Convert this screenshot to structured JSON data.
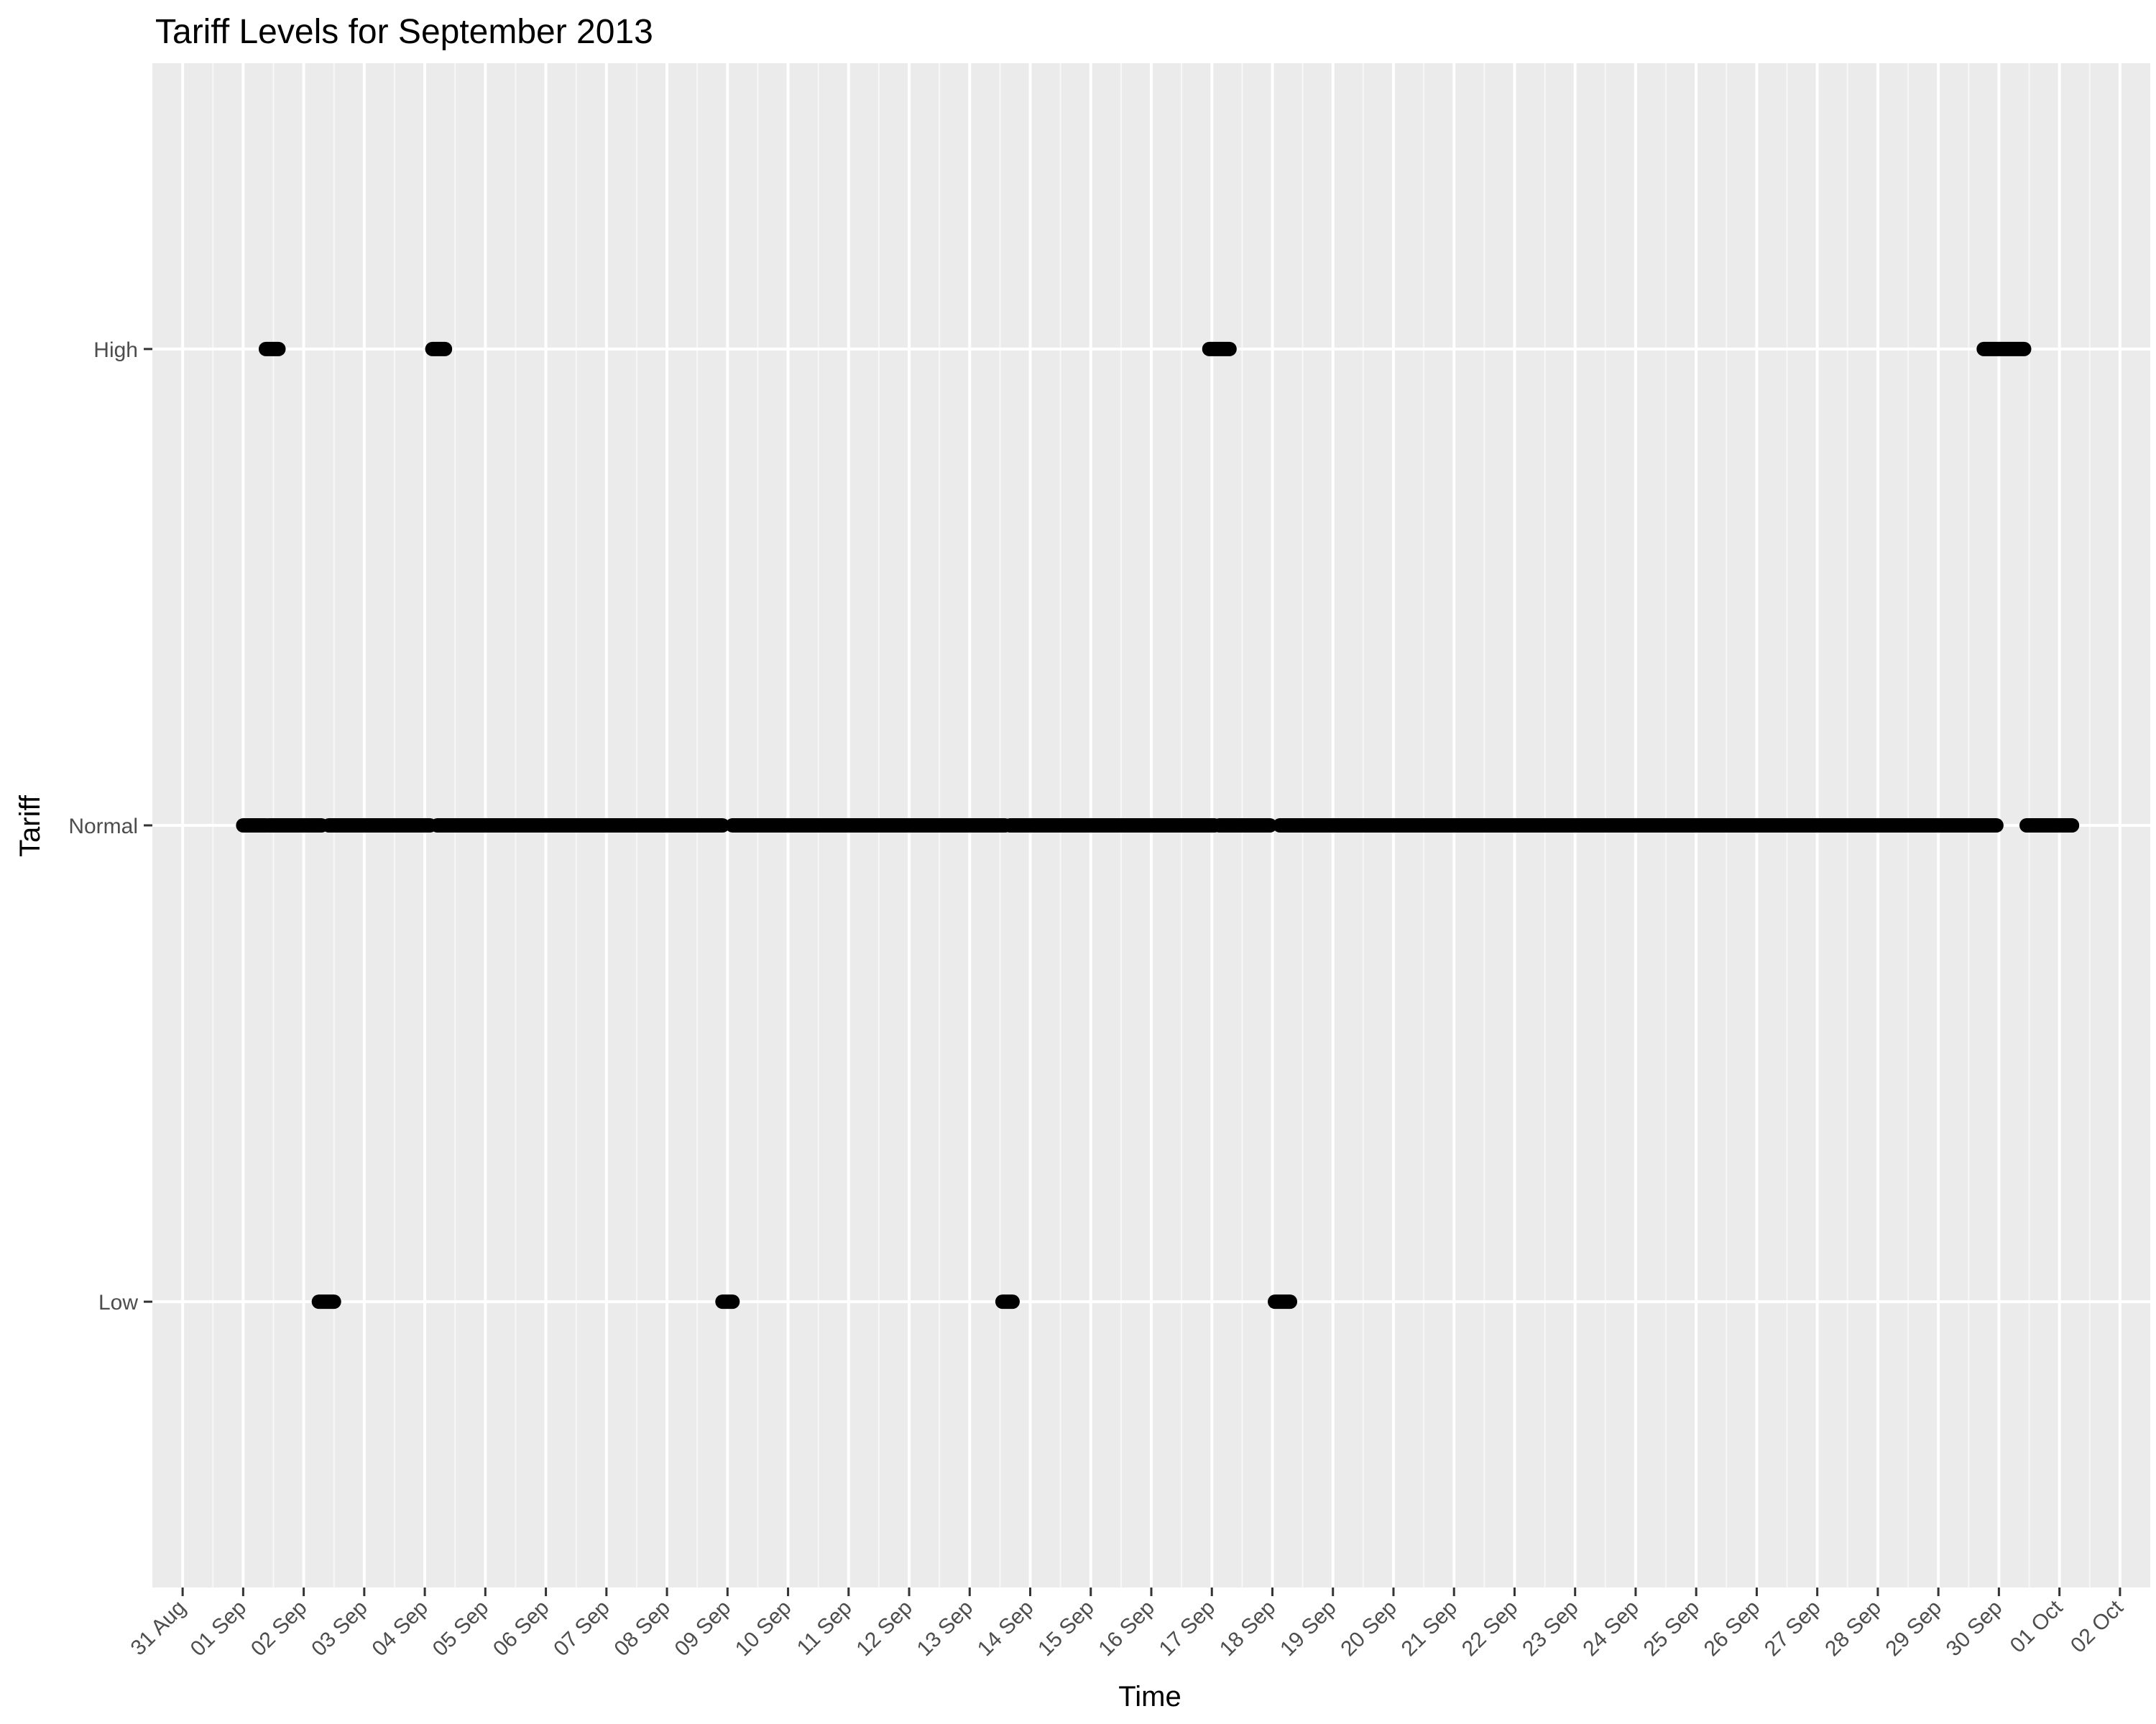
{
  "chart_data": {
    "type": "scatter",
    "title": "Tariff Levels for September 2013",
    "xlabel": "Time",
    "ylabel": "Tariff",
    "x_axis": {
      "type": "date",
      "tick_labels": [
        "31 Aug",
        "01 Sep",
        "02 Sep",
        "03 Sep",
        "04 Sep",
        "05 Sep",
        "06 Sep",
        "07 Sep",
        "08 Sep",
        "09 Sep",
        "10 Sep",
        "11 Sep",
        "12 Sep",
        "13 Sep",
        "14 Sep",
        "15 Sep",
        "16 Sep",
        "17 Sep",
        "18 Sep",
        "19 Sep",
        "20 Sep",
        "21 Sep",
        "22 Sep",
        "23 Sep",
        "24 Sep",
        "25 Sep",
        "26 Sep",
        "27 Sep",
        "28 Sep",
        "29 Sep",
        "30 Sep",
        "01 Oct",
        "02 Oct"
      ],
      "range": [
        "2013-08-30T12:00",
        "2013-10-02T12:00"
      ]
    },
    "y_axis": {
      "type": "categorical",
      "categories": [
        "Low",
        "Normal",
        "High"
      ]
    },
    "grid": true,
    "legend": "none",
    "marker_color": "#000000",
    "panel_color": "#ebebeb",
    "grid_color": "#ffffff",
    "series": [
      {
        "level": "High",
        "intervals": [
          [
            "2013-09-01T09:00",
            "2013-09-01T14:00"
          ],
          [
            "2013-09-04T03:00",
            "2013-09-04T08:00"
          ],
          [
            "2013-09-16T23:00",
            "2013-09-17T07:00"
          ],
          [
            "2013-09-29T18:00",
            "2013-09-30T10:00"
          ]
        ]
      },
      {
        "level": "Normal",
        "intervals": [
          [
            "2013-09-01T00:00",
            "2013-09-01T09:00"
          ],
          [
            "2013-09-01T10:00",
            "2013-09-02T07:00"
          ],
          [
            "2013-09-02T10:00",
            "2013-09-04T02:00"
          ],
          [
            "2013-09-04T05:00",
            "2013-09-08T22:00"
          ],
          [
            "2013-09-09T02:00",
            "2013-09-13T14:00"
          ],
          [
            "2013-09-13T16:00",
            "2013-09-17T01:00"
          ],
          [
            "2013-09-17T03:00",
            "2013-09-17T23:00"
          ],
          [
            "2013-09-18T03:00",
            "2013-09-29T23:00"
          ],
          [
            "2013-09-30T11:00",
            "2013-10-01T05:00"
          ]
        ]
      },
      {
        "level": "Low",
        "intervals": [
          [
            "2013-09-02T06:00",
            "2013-09-02T12:00"
          ],
          [
            "2013-09-08T22:00",
            "2013-09-09T02:00"
          ],
          [
            "2013-09-13T13:00",
            "2013-09-13T17:00"
          ],
          [
            "2013-09-18T01:00",
            "2013-09-18T07:00"
          ]
        ]
      }
    ]
  }
}
